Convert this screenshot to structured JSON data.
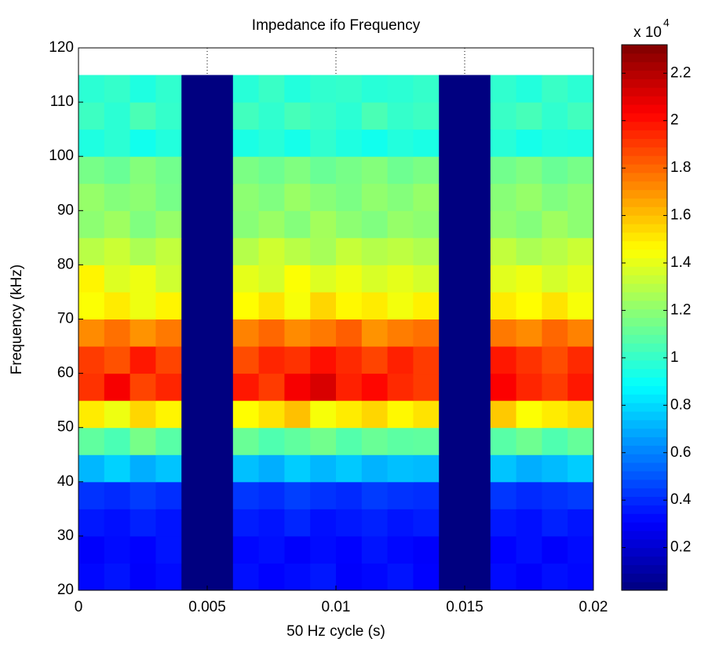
{
  "chart_data": {
    "type": "heatmap",
    "title": "Impedance ifo Frequency",
    "x_label": "50 Hz cycle (s)",
    "y_label": "Frequency (kHz)",
    "xbins": [
      0,
      0.001,
      0.002,
      0.003,
      0.004,
      0.005,
      0.006,
      0.007,
      0.008,
      0.009,
      0.01,
      0.011,
      0.012,
      0.013,
      0.014,
      0.015,
      0.016,
      0.017,
      0.018,
      0.019,
      0.02
    ],
    "ybins": [
      20,
      25,
      30,
      35,
      40,
      45,
      50,
      55,
      60,
      65,
      70,
      75,
      80,
      85,
      90,
      95,
      100,
      105,
      110,
      115
    ],
    "values": [
      [
        0.32,
        0.35,
        0.3,
        0.33,
        0.02,
        0.02,
        0.34,
        0.31,
        0.33,
        0.36,
        0.3,
        0.32,
        0.35,
        0.31,
        0.02,
        0.02,
        0.33,
        0.3,
        0.34,
        0.32
      ],
      [
        0.3,
        0.33,
        0.31,
        0.35,
        0.02,
        0.02,
        0.32,
        0.34,
        0.3,
        0.33,
        0.31,
        0.35,
        0.32,
        0.3,
        0.02,
        0.02,
        0.31,
        0.34,
        0.3,
        0.33
      ],
      [
        0.36,
        0.34,
        0.38,
        0.35,
        0.02,
        0.02,
        0.37,
        0.35,
        0.39,
        0.34,
        0.36,
        0.38,
        0.35,
        0.37,
        0.02,
        0.02,
        0.36,
        0.34,
        0.38,
        0.35
      ],
      [
        0.42,
        0.4,
        0.44,
        0.41,
        0.02,
        0.02,
        0.43,
        0.41,
        0.45,
        0.42,
        0.4,
        0.44,
        0.42,
        0.41,
        0.02,
        0.02,
        0.43,
        0.4,
        0.42,
        0.44
      ],
      [
        0.72,
        0.78,
        0.7,
        0.75,
        0.02,
        0.02,
        0.74,
        0.7,
        0.77,
        0.72,
        0.76,
        0.71,
        0.74,
        0.73,
        0.02,
        0.02,
        0.75,
        0.7,
        0.73,
        0.77
      ],
      [
        1.1,
        1.05,
        1.15,
        1.08,
        0.02,
        0.02,
        1.12,
        1.06,
        1.1,
        1.14,
        1.07,
        1.12,
        1.09,
        1.1,
        0.02,
        0.02,
        1.08,
        1.13,
        1.06,
        1.11
      ],
      [
        1.5,
        1.42,
        1.55,
        1.48,
        0.02,
        0.02,
        1.46,
        1.52,
        1.6,
        1.44,
        1.5,
        1.55,
        1.47,
        1.52,
        0.02,
        0.02,
        1.58,
        1.45,
        1.5,
        1.54
      ],
      [
        1.92,
        2.05,
        1.88,
        1.95,
        0.02,
        0.02,
        1.98,
        1.9,
        2.05,
        2.12,
        1.96,
        2.02,
        1.94,
        1.9,
        0.02,
        0.02,
        2.04,
        1.95,
        1.9,
        1.98
      ],
      [
        1.9,
        1.85,
        1.98,
        1.88,
        0.02,
        0.02,
        1.86,
        1.95,
        1.92,
        2.0,
        1.94,
        1.88,
        1.96,
        1.9,
        0.02,
        0.02,
        1.98,
        1.92,
        1.86,
        1.94
      ],
      [
        1.72,
        1.78,
        1.7,
        1.76,
        0.02,
        0.02,
        1.74,
        1.8,
        1.72,
        1.76,
        1.82,
        1.7,
        1.75,
        1.78,
        0.02,
        0.02,
        1.76,
        1.72,
        1.8,
        1.74
      ],
      [
        1.45,
        1.5,
        1.42,
        1.48,
        0.02,
        0.02,
        1.46,
        1.52,
        1.44,
        1.55,
        1.47,
        1.5,
        1.43,
        1.49,
        0.02,
        0.02,
        1.5,
        1.46,
        1.52,
        1.44
      ],
      [
        1.48,
        1.38,
        1.42,
        1.35,
        0.02,
        0.02,
        1.4,
        1.36,
        1.45,
        1.38,
        1.42,
        1.37,
        1.4,
        1.36,
        0.02,
        0.02,
        1.39,
        1.42,
        1.36,
        1.4
      ],
      [
        1.3,
        1.34,
        1.27,
        1.32,
        0.02,
        0.02,
        1.29,
        1.35,
        1.3,
        1.26,
        1.33,
        1.29,
        1.31,
        1.28,
        0.02,
        0.02,
        1.32,
        1.27,
        1.3,
        1.34
      ],
      [
        1.2,
        1.24,
        1.17,
        1.22,
        0.02,
        0.02,
        1.19,
        1.23,
        1.18,
        1.25,
        1.2,
        1.17,
        1.22,
        1.2,
        0.02,
        0.02,
        1.21,
        1.18,
        1.24,
        1.2
      ],
      [
        1.22,
        1.18,
        1.2,
        1.15,
        0.02,
        0.02,
        1.2,
        1.17,
        1.23,
        1.19,
        1.16,
        1.21,
        1.18,
        1.22,
        0.02,
        0.02,
        1.19,
        1.22,
        1.17,
        1.2
      ],
      [
        1.15,
        1.12,
        1.18,
        1.14,
        0.02,
        0.02,
        1.16,
        1.13,
        1.17,
        1.12,
        1.15,
        1.18,
        1.13,
        1.16,
        0.02,
        0.02,
        1.14,
        1.17,
        1.12,
        1.15
      ],
      [
        0.95,
        0.98,
        0.92,
        0.96,
        0.02,
        0.02,
        0.94,
        0.97,
        0.93,
        0.99,
        0.95,
        0.92,
        0.96,
        0.94,
        0.02,
        0.02,
        0.97,
        0.93,
        0.96,
        0.95
      ],
      [
        1.02,
        0.98,
        1.05,
        1.0,
        0.02,
        0.02,
        1.03,
        0.99,
        1.04,
        1.01,
        0.98,
        1.05,
        1.0,
        1.02,
        0.02,
        0.02,
        1.01,
        1.04,
        0.99,
        1.03
      ],
      [
        0.98,
        1.0,
        0.95,
        0.99,
        0.02,
        0.02,
        0.97,
        1.01,
        0.96,
        0.99,
        1.0,
        0.97,
        0.98,
        1.0,
        0.02,
        0.02,
        0.99,
        0.96,
        1.01,
        0.98
      ]
    ],
    "xlim": [
      0,
      0.02
    ],
    "xticks": [
      0,
      0.005,
      0.01,
      0.015,
      0.02
    ],
    "ylim": [
      20,
      120
    ],
    "yticks": [
      20,
      30,
      40,
      50,
      60,
      70,
      80,
      90,
      100,
      110,
      120
    ],
    "grid": true,
    "colormap": "jet",
    "clim": [
      0.02,
      2.32
    ],
    "cticks": [
      0.2,
      0.4,
      0.6,
      0.8,
      1,
      1.2,
      1.4,
      1.6,
      1.8,
      2,
      2.2
    ],
    "colorbar_multiplier": "x 10",
    "colorbar_exponent": "4"
  }
}
